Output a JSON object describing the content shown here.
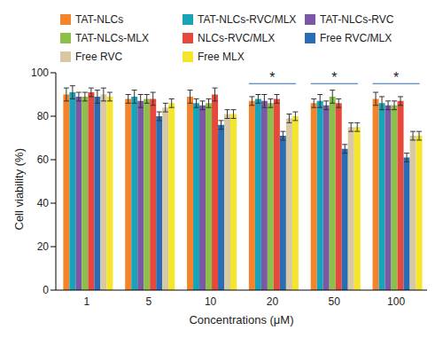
{
  "chart_data": {
    "type": "bar",
    "categories": [
      "1",
      "5",
      "10",
      "20",
      "50",
      "100"
    ],
    "xlabel": "Concentrations (μM)",
    "ylabel": "Cell viability (%)",
    "ylim": [
      0,
      100
    ],
    "yticks": [
      0,
      20,
      40,
      60,
      80,
      100
    ],
    "legend": "top",
    "series": [
      {
        "name": "TAT-NLCs",
        "color": "#f5832a",
        "values": [
          90,
          88,
          89,
          87,
          86,
          88
        ],
        "errors": [
          3,
          2,
          3,
          2,
          2,
          3
        ]
      },
      {
        "name": "TAT-NLCs-RVC/MLX",
        "color": "#17a3b8",
        "values": [
          91,
          89,
          86,
          88,
          87,
          86
        ],
        "errors": [
          3,
          3,
          2,
          2,
          3,
          3
        ]
      },
      {
        "name": "TAT-NLCs-RVC",
        "color": "#7b58a3",
        "values": [
          89,
          87,
          85,
          87,
          85,
          85
        ],
        "errors": [
          2,
          3,
          2,
          3,
          2,
          2
        ]
      },
      {
        "name": "TAT-NLCs-MLX",
        "color": "#8cc04b",
        "values": [
          89,
          88,
          86,
          86,
          89,
          85
        ],
        "errors": [
          2,
          2,
          2,
          2,
          3,
          2
        ]
      },
      {
        "name": "NLCs-RVC/MLX",
        "color": "#e8483b",
        "values": [
          91,
          88,
          90,
          88,
          86,
          87
        ],
        "errors": [
          2,
          3,
          3,
          2,
          2,
          2
        ]
      },
      {
        "name": "Free RVC/MLX",
        "color": "#2a6db5",
        "values": [
          89,
          80,
          76,
          71,
          65,
          61
        ],
        "errors": [
          3,
          2,
          2,
          2,
          2,
          2
        ]
      },
      {
        "name": "Free RVC",
        "color": "#d8c8a4",
        "values": [
          90,
          84,
          81,
          79,
          75,
          71
        ],
        "errors": [
          3,
          2,
          2,
          2,
          2,
          2
        ]
      },
      {
        "name": "Free MLX",
        "color": "#f5e52b",
        "values": [
          89,
          86,
          81,
          80,
          75,
          71
        ],
        "errors": [
          2,
          2,
          2,
          2,
          2,
          2
        ]
      }
    ],
    "annotations": [
      {
        "category": "20",
        "text": "*",
        "y": 95
      },
      {
        "category": "50",
        "text": "*",
        "y": 95
      },
      {
        "category": "100",
        "text": "*",
        "y": 95
      }
    ]
  }
}
